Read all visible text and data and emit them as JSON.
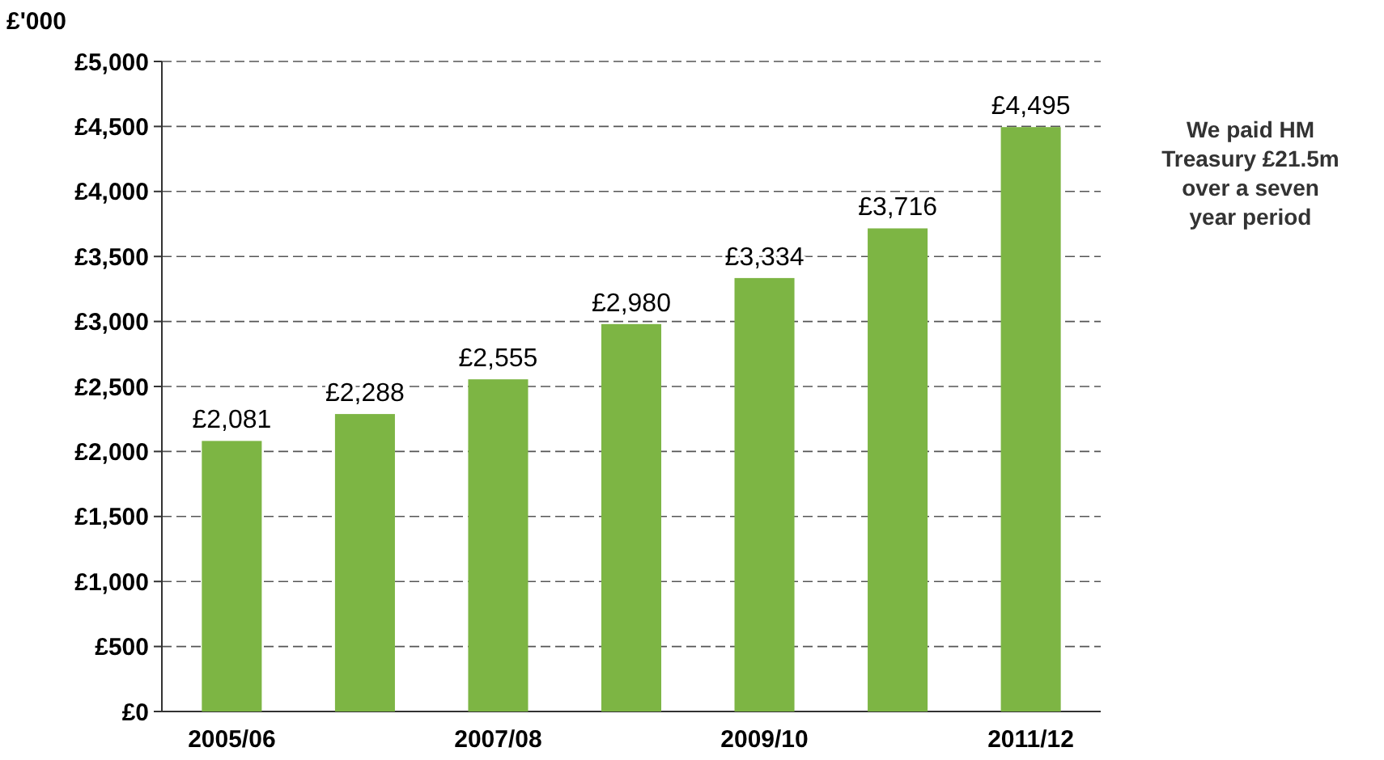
{
  "chart_data": {
    "type": "bar",
    "ylabel": "£'000",
    "categories": [
      "2005/06",
      null,
      "2007/08",
      null,
      "2009/10",
      null,
      "2011/12"
    ],
    "values": [
      2081,
      2288,
      2555,
      2980,
      3334,
      3716,
      4495
    ],
    "value_labels": [
      "£2,081",
      "£2,288",
      "£2,555",
      "£2,980",
      "£3,334",
      "£3,716",
      "£4,495"
    ],
    "color": "#7db544",
    "ylim": [
      0,
      5000
    ],
    "yticks": [
      {
        "value": 0,
        "label": "£0"
      },
      {
        "value": 500,
        "label": "£500"
      },
      {
        "value": 1000,
        "label": "£1,000"
      },
      {
        "value": 1500,
        "label": "£1,500"
      },
      {
        "value": 2000,
        "label": "£2,000"
      },
      {
        "value": 2500,
        "label": "£2,500"
      },
      {
        "value": 3000,
        "label": "£3,000"
      },
      {
        "value": 3500,
        "label": "£3,500"
      },
      {
        "value": 4000,
        "label": "£4,000"
      },
      {
        "value": 4500,
        "label": "£4,500"
      },
      {
        "value": 5000,
        "label": "£5,000"
      }
    ],
    "grid": "y",
    "annotations": [
      "We paid HM Treasury £21.5m over a seven year period"
    ]
  }
}
